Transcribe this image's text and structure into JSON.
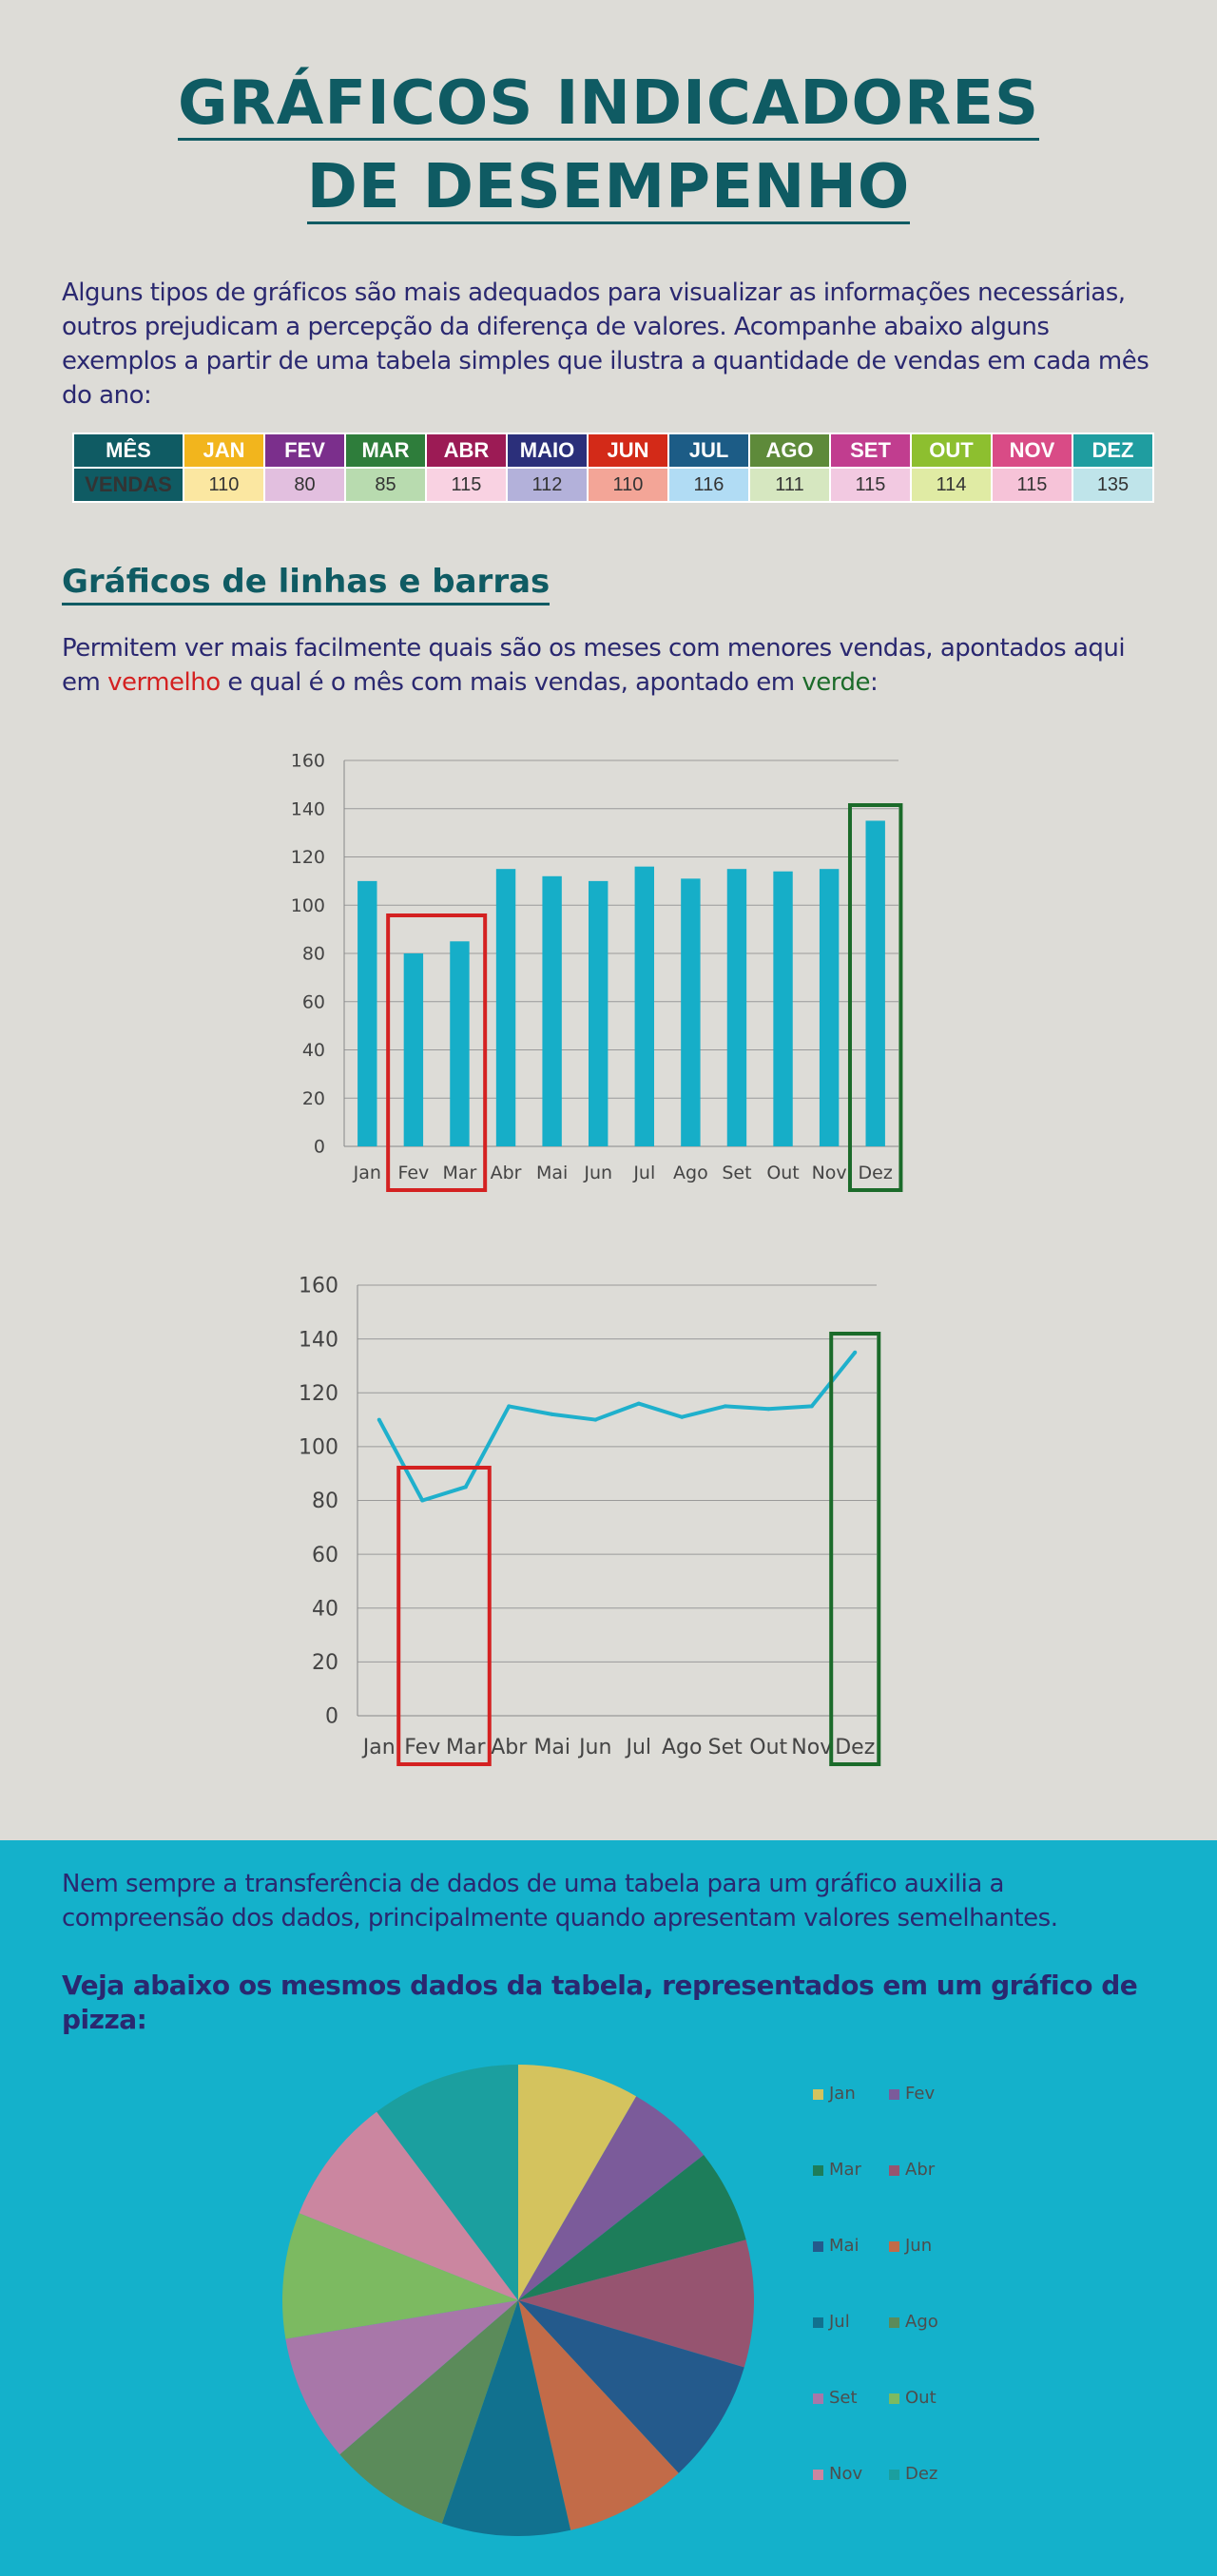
{
  "title": {
    "line1": "GRÁFICOS INDICADORES",
    "line2": "DE DESEMPENHO"
  },
  "intro": "Alguns tipos de gráficos são mais adequados para visualizar as informações necessárias, outros prejudicam a percepção da diferença de valores. Acompanhe abaixo alguns exemplos a partir de uma tabela simples que ilustra a quantidade de vendas em cada mês do ano:",
  "table": {
    "header_month": "MÊS",
    "header_sales": "VENDAS",
    "months": [
      "JAN",
      "FEV",
      "MAR",
      "ABR",
      "MAIO",
      "JUN",
      "JUL",
      "AGO",
      "SET",
      "OUT",
      "NOV",
      "DEZ"
    ],
    "values": [
      "110",
      "80",
      "85",
      "115",
      "112",
      "110",
      "116",
      "111",
      "115",
      "114",
      "115",
      "135"
    ],
    "month_colors": [
      "#f2b51d",
      "#7b2f8c",
      "#2e7d3b",
      "#9c1b55",
      "#2b2f7a",
      "#d32a18",
      "#1c5c86",
      "#5e8a3a",
      "#c13d8f",
      "#8dbf2f",
      "#d94b86",
      "#1f9da0"
    ],
    "value_colors": [
      "#fbe7a1",
      "#e2bfdf",
      "#b8dbaf",
      "#f9d2e2",
      "#b3b1da",
      "#f3a597",
      "#b1dcf4",
      "#d6e7c0",
      "#f2c9e1",
      "#e0eba4",
      "#f6c3d8",
      "#bfe4ea"
    ]
  },
  "section_title": "Gráficos de linhas e barras",
  "para2": {
    "part1": "Permitem ver mais facilmente quais são os meses com menores vendas, apontados aqui em ",
    "red_word": "vermelho",
    "part2": " e qual é o mês com mais vendas, apontado em ",
    "green_word": "verde",
    "part3": ":"
  },
  "para3": "Nem sempre a transferência de dados de uma tabela para um gráfico auxilia a compreensão dos dados, principalmente quando apresentam valores semelhantes.",
  "para4": "Veja abaixo os mesmos dados da tabela, representados em um gráfico de pizza:",
  "colors": {
    "bar": "#16aec8",
    "line": "#1fb0cc",
    "highlight_low": "#d42121",
    "highlight_high": "#1b6b2a"
  },
  "chart_data": [
    {
      "type": "bar",
      "categories": [
        "Jan",
        "Fev",
        "Mar",
        "Abr",
        "Mai",
        "Jun",
        "Jul",
        "Ago",
        "Set",
        "Out",
        "Nov",
        "Dez"
      ],
      "values": [
        110,
        80,
        85,
        115,
        112,
        110,
        116,
        111,
        115,
        114,
        115,
        135
      ],
      "yticks": [
        "0",
        "20",
        "40",
        "60",
        "80",
        "100",
        "120",
        "140",
        "160"
      ],
      "ylim": [
        0,
        160
      ],
      "grid": true,
      "highlight_low": [
        "Fev",
        "Mar"
      ],
      "highlight_high": [
        "Dez"
      ]
    },
    {
      "type": "line",
      "categories": [
        "Jan",
        "Fev",
        "Mar",
        "Abr",
        "Mai",
        "Jun",
        "Jul",
        "Ago",
        "Set",
        "Out",
        "Nov",
        "Dez"
      ],
      "values": [
        110,
        80,
        85,
        115,
        112,
        110,
        116,
        111,
        115,
        114,
        115,
        135
      ],
      "yticks": [
        "0",
        "20",
        "40",
        "60",
        "80",
        "100",
        "120",
        "140",
        "160"
      ],
      "ylim": [
        0,
        160
      ],
      "grid": true,
      "highlight_low": [
        "Fev",
        "Mar"
      ],
      "highlight_high": [
        "Dez"
      ]
    },
    {
      "type": "pie",
      "labels": [
        "Jan",
        "Fev",
        "Mar",
        "Abr",
        "Mai",
        "Jun",
        "Jul",
        "Ago",
        "Set",
        "Out",
        "Nov",
        "Dez"
      ],
      "values": [
        110,
        80,
        85,
        115,
        112,
        110,
        116,
        111,
        115,
        114,
        115,
        135
      ],
      "colors": [
        "#d4c35e",
        "#7b5b9a",
        "#1d7d5a",
        "#965470",
        "#245a8c",
        "#c26b48",
        "#11718f",
        "#5b8b5a",
        "#a877a9",
        "#7cba61",
        "#cb86a0",
        "#1b9f9f"
      ],
      "legend": "right"
    }
  ]
}
